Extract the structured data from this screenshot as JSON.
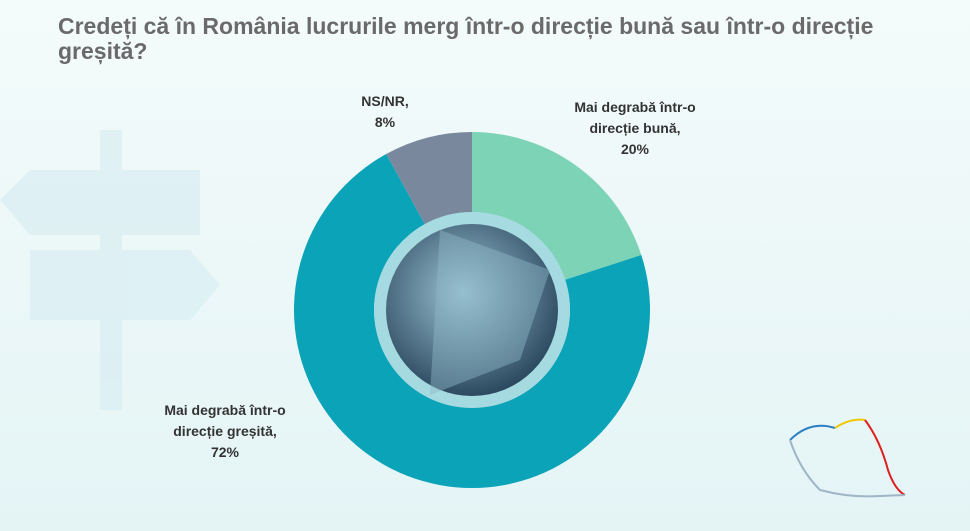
{
  "chart_data": {
    "type": "donut",
    "title": "Credeți că în România lucrurile merg într-o direcție bună sau într-o direcție greșită?",
    "categories": [
      "Mai degrabă într-o direcție bună,",
      "Mai degrabă într-o direcție greșită,",
      "NS/NR,"
    ],
    "values": [
      20,
      72,
      8
    ],
    "value_labels": [
      "20%",
      "72%",
      "8%"
    ],
    "colors": [
      "#7dd3b5",
      "#0aa3b8",
      "#7a889e"
    ]
  }
}
